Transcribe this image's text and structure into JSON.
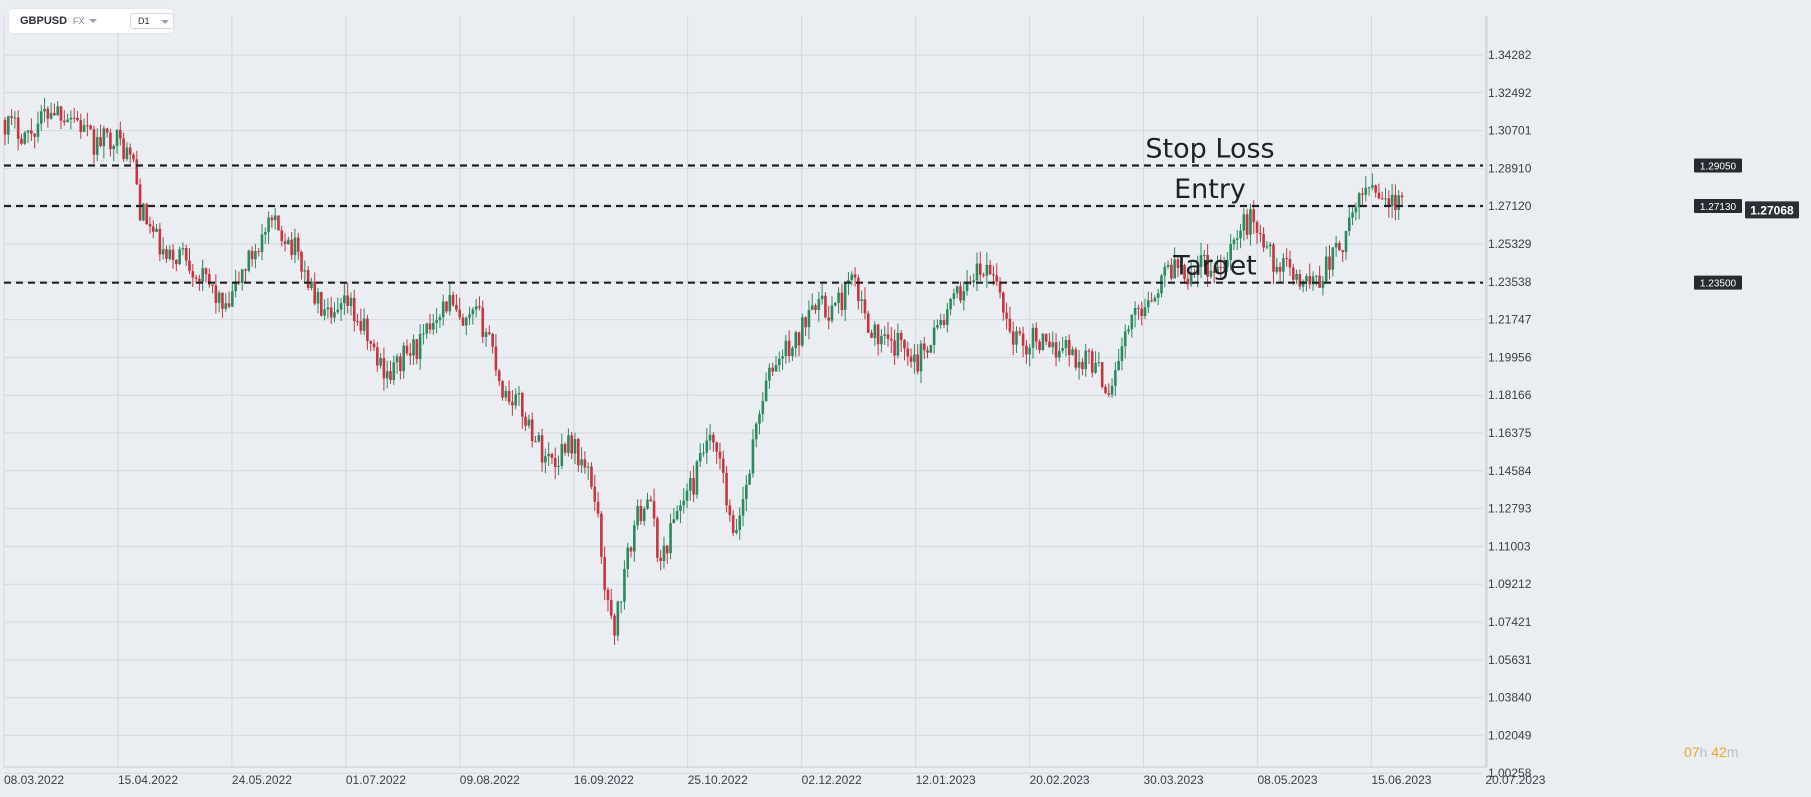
{
  "header": {
    "symbol": "GBPUSD",
    "market": "FX",
    "timeframe": "D1"
  },
  "timer": {
    "hours": "07",
    "hours_unit": "h",
    "minutes": "42",
    "minutes_unit": "m"
  },
  "colors": {
    "bull": "#2a8a5e",
    "bear": "#c8343f",
    "grid": "#d4d9df",
    "background": "#eaedf1",
    "level_line": "#1e2226",
    "tag_bg": "#262b31"
  },
  "chart_data": {
    "type": "candlestick",
    "symbol": "GBPUSD",
    "timeframe": "D1",
    "grid": true,
    "ylim": [
      1.00258,
      1.35
    ],
    "y_ticks": [
      1.34282,
      1.32492,
      1.30701,
      1.2891,
      1.2712,
      1.25329,
      1.23538,
      1.21747,
      1.19956,
      1.18166,
      1.16375,
      1.14584,
      1.12793,
      1.11003,
      1.09212,
      1.07421,
      1.05631,
      1.0384,
      1.02049,
      1.00258
    ],
    "x_ticks": [
      "08.03.2022",
      "15.04.2022",
      "24.05.2022",
      "01.07.2022",
      "09.08.2022",
      "16.09.2022",
      "25.10.2022",
      "02.12.2022",
      "12.01.2023",
      "20.02.2023",
      "30.03.2023",
      "08.05.2023",
      "15.06.2023",
      "20.07.2023"
    ],
    "last_price": "1.27068",
    "levels": [
      {
        "name": "Stop Loss",
        "value": 1.2905,
        "tag": "1.29050"
      },
      {
        "name": "Entry",
        "value": 1.2713,
        "tag": "1.27130"
      },
      {
        "name": "Target",
        "value": 1.235,
        "tag": "1.23500"
      }
    ],
    "path": [
      [
        0,
        1.312
      ],
      [
        8,
        1.305
      ],
      [
        15,
        1.318
      ],
      [
        22,
        1.314
      ],
      [
        28,
        1.3
      ],
      [
        34,
        1.305
      ],
      [
        40,
        1.292
      ],
      [
        42,
        1.27
      ],
      [
        46,
        1.258
      ],
      [
        50,
        1.245
      ],
      [
        55,
        1.25
      ],
      [
        60,
        1.238
      ],
      [
        64,
        1.232
      ],
      [
        68,
        1.22
      ],
      [
        73,
        1.24
      ],
      [
        78,
        1.254
      ],
      [
        82,
        1.262
      ],
      [
        86,
        1.258
      ],
      [
        90,
        1.248
      ],
      [
        95,
        1.228
      ],
      [
        100,
        1.215
      ],
      [
        105,
        1.225
      ],
      [
        110,
        1.212
      ],
      [
        114,
        1.198
      ],
      [
        118,
        1.192
      ],
      [
        122,
        1.2
      ],
      [
        128,
        1.207
      ],
      [
        132,
        1.222
      ],
      [
        136,
        1.226
      ],
      [
        140,
        1.212
      ],
      [
        144,
        1.22
      ],
      [
        148,
        1.21
      ],
      [
        152,
        1.184
      ],
      [
        156,
        1.18
      ],
      [
        160,
        1.168
      ],
      [
        164,
        1.155
      ],
      [
        168,
        1.15
      ],
      [
        172,
        1.162
      ],
      [
        176,
        1.15
      ],
      [
        180,
        1.136
      ],
      [
        184,
        1.08
      ],
      [
        186,
        1.072
      ],
      [
        188,
        1.088
      ],
      [
        192,
        1.12
      ],
      [
        196,
        1.135
      ],
      [
        200,
        1.102
      ],
      [
        205,
        1.128
      ],
      [
        210,
        1.14
      ],
      [
        214,
        1.16
      ],
      [
        218,
        1.15
      ],
      [
        222,
        1.112
      ],
      [
        226,
        1.14
      ],
      [
        230,
        1.176
      ],
      [
        234,
        1.195
      ],
      [
        238,
        1.203
      ],
      [
        242,
        1.208
      ],
      [
        246,
        1.23
      ],
      [
        250,
        1.221
      ],
      [
        254,
        1.225
      ],
      [
        258,
        1.236
      ],
      [
        262,
        1.22
      ],
      [
        266,
        1.208
      ],
      [
        270,
        1.204
      ],
      [
        274,
        1.207
      ],
      [
        278,
        1.198
      ],
      [
        282,
        1.21
      ],
      [
        286,
        1.218
      ],
      [
        290,
        1.228
      ],
      [
        294,
        1.238
      ],
      [
        298,
        1.24
      ],
      [
        302,
        1.236
      ],
      [
        306,
        1.212
      ],
      [
        310,
        1.205
      ],
      [
        314,
        1.21
      ],
      [
        318,
        1.2
      ],
      [
        322,
        1.208
      ],
      [
        326,
        1.198
      ],
      [
        330,
        1.2
      ],
      [
        334,
        1.19
      ],
      [
        336,
        1.184
      ],
      [
        340,
        1.205
      ],
      [
        344,
        1.22
      ],
      [
        348,
        1.228
      ],
      [
        352,
        1.236
      ],
      [
        356,
        1.245
      ],
      [
        360,
        1.24
      ],
      [
        364,
        1.246
      ],
      [
        368,
        1.24
      ],
      [
        372,
        1.25
      ],
      [
        376,
        1.26
      ],
      [
        380,
        1.266
      ],
      [
        384,
        1.25
      ],
      [
        388,
        1.242
      ],
      [
        392,
        1.24
      ],
      [
        396,
        1.235
      ],
      [
        400,
        1.238
      ],
      [
        404,
        1.248
      ],
      [
        408,
        1.255
      ],
      [
        412,
        1.276
      ],
      [
        416,
        1.283
      ],
      [
        420,
        1.275
      ],
      [
        424,
        1.271
      ]
    ],
    "candle_count": 425
  }
}
